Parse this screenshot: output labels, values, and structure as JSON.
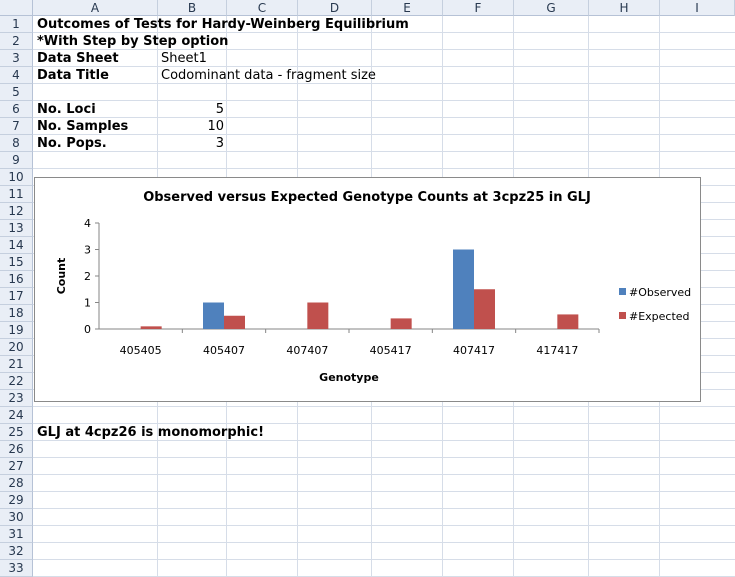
{
  "columns": [
    "A",
    "B",
    "C",
    "D",
    "E",
    "F",
    "G",
    "H",
    "I"
  ],
  "rows": [
    "1",
    "2",
    "3",
    "4",
    "5",
    "6",
    "7",
    "8",
    "9",
    "10",
    "11",
    "12",
    "13",
    "14",
    "15",
    "16",
    "17",
    "18",
    "19",
    "20",
    "21",
    "22",
    "23",
    "24",
    "25",
    "26",
    "27",
    "28",
    "29",
    "30",
    "31",
    "32",
    "33"
  ],
  "cells": {
    "title": "Outcomes of Tests for Hardy-Weinberg Equilibrium",
    "step_option": "*With Step by Step option",
    "data_sheet_label": "Data Sheet",
    "data_sheet_value": "Sheet1",
    "data_title_label": "Data Title",
    "data_title_value": "Codominant data - fragment size",
    "loci_label": "No. Loci",
    "loci_value": "5",
    "samples_label": "No. Samples",
    "samples_value": "10",
    "pops_label": "No. Pops.",
    "pops_value": "3",
    "monomorphic_note": "GLJ at 4cpz26 is monomorphic!"
  },
  "chart_data": {
    "type": "bar",
    "title": "Observed versus Expected Genotype Counts at 3cpz25 in GLJ",
    "xlabel": "Genotype",
    "ylabel": "Count",
    "ylim": [
      0,
      4
    ],
    "yticks": [
      "0",
      "1",
      "2",
      "3",
      "4"
    ],
    "categories": [
      "405405",
      "405407",
      "407407",
      "405417",
      "407417",
      "417417"
    ],
    "series": [
      {
        "name": "#Observed",
        "color": "#4f81bd",
        "values": [
          0,
          1,
          0,
          0,
          3,
          0
        ]
      },
      {
        "name": "#Expected",
        "color": "#c0504d",
        "values": [
          0.1,
          0.5,
          1.0,
          0.4,
          1.5,
          0.55
        ]
      }
    ],
    "legend": "right",
    "grid": false
  }
}
